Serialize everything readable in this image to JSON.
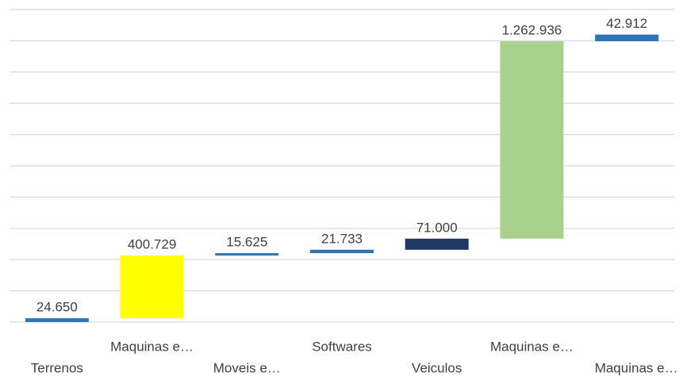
{
  "chart_data": {
    "type": "waterfall",
    "categories": [
      "Terrenos",
      "Maquinas e…",
      "Moveis e…",
      "Softwares",
      "Veiculos",
      "Maquinas e…",
      "Maquinas e…"
    ],
    "values": [
      24650,
      400729,
      15625,
      21733,
      71000,
      1262936,
      42912
    ],
    "value_labels": [
      "24.650",
      "400.729",
      "15.625",
      "21.733",
      "71.000",
      "1.262.936",
      "42.912"
    ],
    "colors": [
      "#2e75b6",
      "#ffff00",
      "#2e75b6",
      "#2e75b6",
      "#1f3864",
      "#a9d18e",
      "#2e75b6"
    ],
    "ylim": [
      0,
      2000000
    ],
    "yticks": [
      0,
      200000,
      400000,
      600000,
      800000,
      1000000,
      1200000,
      1400000,
      1600000,
      1800000,
      2000000
    ],
    "grid": true
  }
}
